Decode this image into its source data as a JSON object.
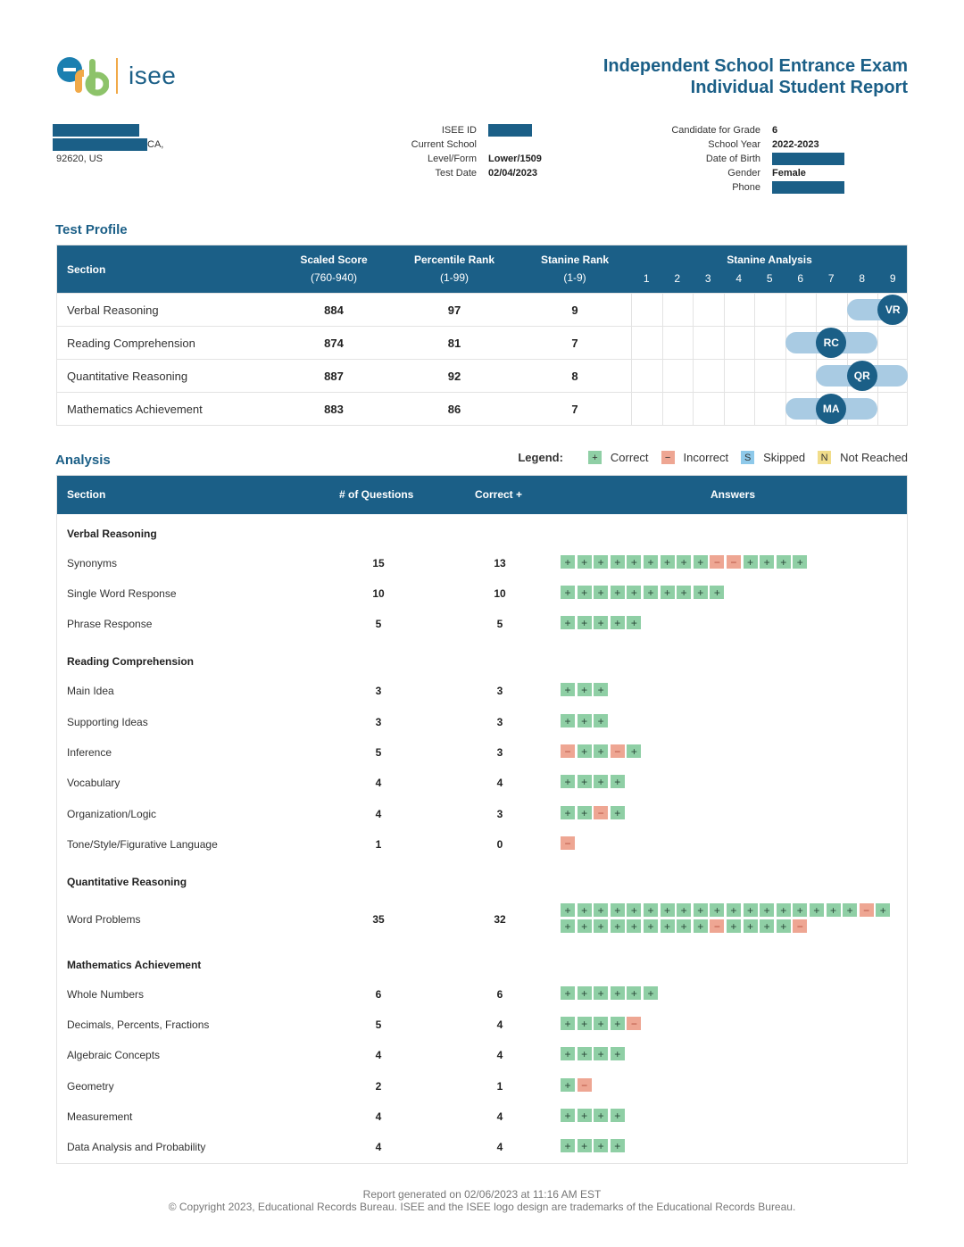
{
  "header": {
    "logo_text": "isee",
    "title_line1": "Independent School Entrance Exam",
    "title_line2": "Individual Student Report"
  },
  "student": {
    "address_suffix": "CA,",
    "address_line3": "92620, US"
  },
  "test_info": [
    {
      "label": "ISEE ID",
      "value": "",
      "redacted": true
    },
    {
      "label": "Current School",
      "value": ""
    },
    {
      "label": "Level/Form",
      "value": "Lower/1509"
    },
    {
      "label": "Test Date",
      "value": "02/04/2023"
    }
  ],
  "candidate_info": [
    {
      "label": "Candidate for Grade",
      "value": "6"
    },
    {
      "label": "School Year",
      "value": "2022-2023"
    },
    {
      "label": "Date of Birth",
      "value": "",
      "redacted": true
    },
    {
      "label": "Gender",
      "value": "Female"
    },
    {
      "label": "Phone",
      "value": "",
      "redacted": true
    }
  ],
  "test_profile": {
    "title": "Test Profile",
    "headers": {
      "section": "Section",
      "scaled": "Scaled Score",
      "scaled_range": "(760-940)",
      "percentile": "Percentile Rank",
      "percentile_range": "(1-99)",
      "stanine": "Stanine Rank",
      "stanine_range": "(1-9)",
      "analysis": "Stanine Analysis",
      "stanine_numbers": [
        "1",
        "2",
        "3",
        "4",
        "5",
        "6",
        "7",
        "8",
        "9"
      ]
    },
    "rows": [
      {
        "section": "Verbal Reasoning",
        "scaled": "884",
        "percentile": "97",
        "stanine": "9",
        "abbr": "VR",
        "band_low": 8,
        "band_high": 9
      },
      {
        "section": "Reading Comprehension",
        "scaled": "874",
        "percentile": "81",
        "stanine": "7",
        "abbr": "RC",
        "band_low": 6,
        "band_high": 8
      },
      {
        "section": "Quantitative Reasoning",
        "scaled": "887",
        "percentile": "92",
        "stanine": "8",
        "abbr": "QR",
        "band_low": 7,
        "band_high": 9
      },
      {
        "section": "Mathematics Achievement",
        "scaled": "883",
        "percentile": "86",
        "stanine": "7",
        "abbr": "MA",
        "band_low": 6,
        "band_high": 8
      }
    ]
  },
  "analysis": {
    "title": "Analysis",
    "legend_title": "Legend:",
    "legend": [
      {
        "symbol": "+",
        "label": "Correct",
        "color": "#8fcfa5"
      },
      {
        "symbol": "−",
        "label": "Incorrect",
        "color": "#eea693"
      },
      {
        "symbol": "S",
        "label": "Skipped",
        "color": "#8ec9ea"
      },
      {
        "symbol": "N",
        "label": "Not Reached",
        "color": "#f1dd8a"
      }
    ],
    "headers": {
      "section": "Section",
      "questions": "# of Questions",
      "correct": "Correct +",
      "answers": "Answers"
    },
    "groups": [
      {
        "name": "Verbal Reasoning",
        "rows": [
          {
            "label": "Synonyms",
            "questions": "15",
            "correct": "13",
            "answers": "+++++++++--++++"
          },
          {
            "label": "Single Word Response",
            "questions": "10",
            "correct": "10",
            "answers": "++++++++++"
          },
          {
            "label": "Phrase Response",
            "questions": "5",
            "correct": "5",
            "answers": "+++++"
          }
        ]
      },
      {
        "name": "Reading Comprehension",
        "rows": [
          {
            "label": "Main Idea",
            "questions": "3",
            "correct": "3",
            "answers": "+++"
          },
          {
            "label": "Supporting Ideas",
            "questions": "3",
            "correct": "3",
            "answers": "+++"
          },
          {
            "label": "Inference",
            "questions": "5",
            "correct": "3",
            "answers": "-++-+"
          },
          {
            "label": "Vocabulary",
            "questions": "4",
            "correct": "4",
            "answers": "++++"
          },
          {
            "label": "Organization/Logic",
            "questions": "4",
            "correct": "3",
            "answers": "++-+"
          },
          {
            "label": "Tone/Style/Figurative Language",
            "questions": "1",
            "correct": "0",
            "answers": "-"
          }
        ]
      },
      {
        "name": "Quantitative Reasoning",
        "rows": [
          {
            "label": "Word Problems",
            "questions": "35",
            "correct": "32",
            "answers": "++++++++++++++++++-++++++++++-++++-"
          }
        ]
      },
      {
        "name": "Mathematics Achievement",
        "rows": [
          {
            "label": "Whole Numbers",
            "questions": "6",
            "correct": "6",
            "answers": "++++++"
          },
          {
            "label": "Decimals, Percents, Fractions",
            "questions": "5",
            "correct": "4",
            "answers": "++++-"
          },
          {
            "label": "Algebraic Concepts",
            "questions": "4",
            "correct": "4",
            "answers": "++++"
          },
          {
            "label": "Geometry",
            "questions": "2",
            "correct": "1",
            "answers": "+-"
          },
          {
            "label": "Measurement",
            "questions": "4",
            "correct": "4",
            "answers": "++++"
          },
          {
            "label": "Data Analysis and Probability",
            "questions": "4",
            "correct": "4",
            "answers": "++++"
          }
        ]
      }
    ]
  },
  "footer": {
    "generated": "Report generated on 02/06/2023 at 11:16 AM EST",
    "copyright": "© Copyright 2023, Educational Records Bureau. ISEE and the ISEE logo design are trademarks of the Educational Records Bureau."
  },
  "colors": {
    "brand": "#1b5f87",
    "band": "#a9cbe3",
    "correct": "#8fcfa5",
    "incorrect": "#eea693"
  }
}
